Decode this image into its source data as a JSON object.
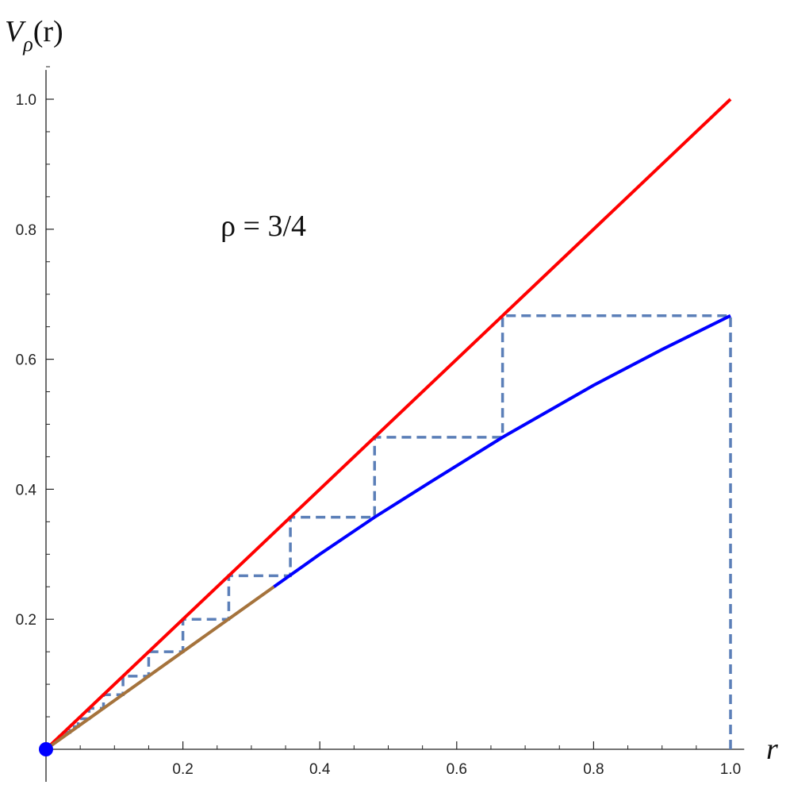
{
  "chart_data": {
    "type": "line",
    "x_label": "r",
    "y_label": {
      "base": "V",
      "sub": "ρ",
      "rest": "(r)"
    },
    "annotation": {
      "text": "ρ = 3/4",
      "x": 0.255,
      "y": 0.79
    },
    "xlim": [
      0,
      1.02
    ],
    "ylim": [
      0,
      1.045
    ],
    "xticks": [
      0.2,
      0.4,
      0.6,
      0.8,
      {
        "value": 1,
        "label": "1.0"
      }
    ],
    "yticks": [
      0.2,
      0.4,
      0.6,
      0.8,
      {
        "value": 1,
        "label": "1.0"
      }
    ],
    "xminorticks": [
      0.05,
      0.1,
      0.15,
      0.25,
      0.3,
      0.35,
      0.45,
      0.5,
      0.55,
      0.65,
      0.7,
      0.75,
      0.85,
      0.9,
      0.95
    ],
    "yminorticks": [
      0.05,
      0.1,
      0.15,
      0.25,
      0.3,
      0.35,
      0.45,
      0.5,
      0.55,
      0.65,
      0.7,
      0.75,
      0.85,
      0.9,
      0.95,
      1.05
    ],
    "series": [
      {
        "color": "#5b7fb8",
        "dashed": true,
        "x": [
          1,
          1,
          0.667,
          0.667,
          0.48,
          0.48,
          0.357,
          0.357,
          0.267,
          0.267,
          0.2,
          0.2,
          0.15,
          0.15,
          0.1125,
          0.1125,
          0.084,
          0.084,
          0.063,
          0.063,
          0.047,
          0.047,
          0.035,
          0.035,
          0.026,
          0.026,
          0.02,
          0.02,
          0
        ],
        "values": [
          0,
          0.667,
          0.667,
          0.48,
          0.48,
          0.357,
          0.357,
          0.267,
          0.267,
          0.2,
          0.2,
          0.15,
          0.15,
          0.1125,
          0.1125,
          0.084,
          0.084,
          0.063,
          0.063,
          0.047,
          0.047,
          0.035,
          0.035,
          0.026,
          0.026,
          0.02,
          0.02,
          0.015,
          0
        ]
      },
      {
        "color": "#ff0000",
        "x": [
          0,
          1
        ],
        "values": [
          0,
          1
        ]
      },
      {
        "color": "#a5733c",
        "x": [
          0,
          0.333
        ],
        "values": [
          0,
          0.25
        ]
      },
      {
        "color": "#0000ff",
        "x": [
          0.333,
          0.4,
          0.48,
          0.56,
          0.667,
          0.8,
          0.9,
          1
        ],
        "values": [
          0.25,
          0.3,
          0.357,
          0.41,
          0.48,
          0.56,
          0.615,
          0.667
        ]
      }
    ],
    "points": [
      {
        "x": 0,
        "y": 0,
        "color": "#0000ff"
      }
    ]
  }
}
